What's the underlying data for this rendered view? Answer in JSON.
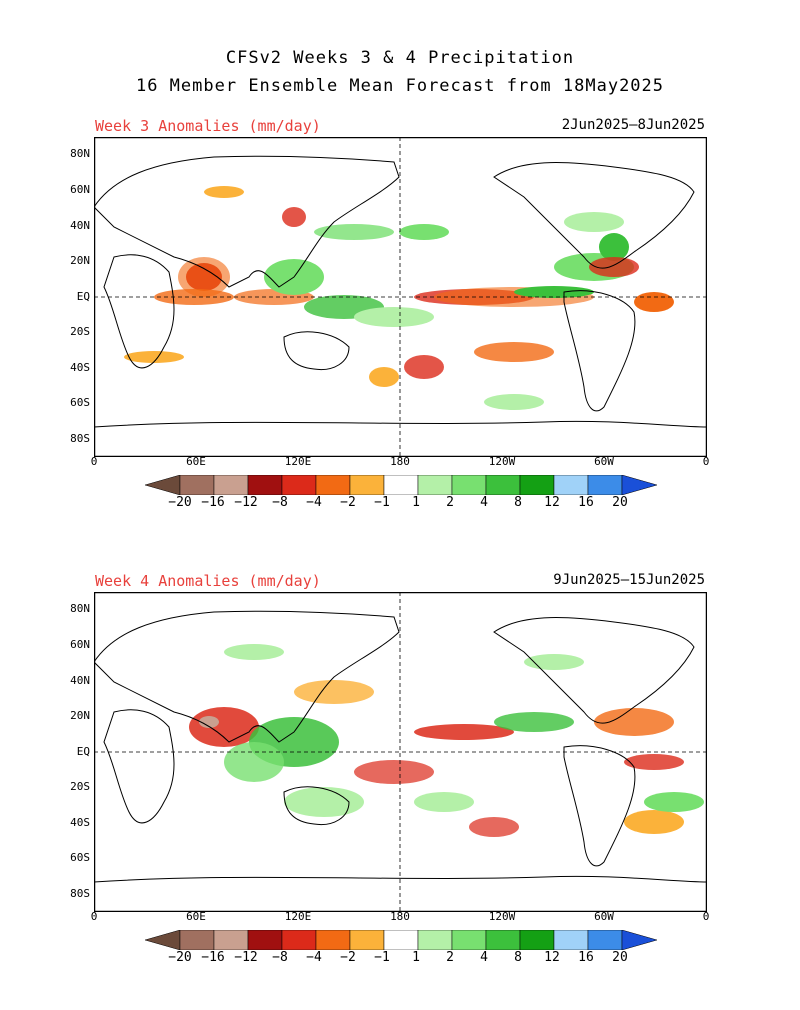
{
  "title_line1": "CFSv2 Weeks 3 & 4 Precipitation",
  "title_line2": "16 Member Ensemble Mean Forecast from 18May2025",
  "panels": [
    {
      "label": "Week 3 Anomalies (mm/day)",
      "dates": "2Jun2025–8Jun2025"
    },
    {
      "label": "Week 4 Anomalies (mm/day)",
      "dates": "9Jun2025–15Jun2025"
    }
  ],
  "lat_labels": [
    "80N",
    "60N",
    "40N",
    "20N",
    "EQ",
    "20S",
    "40S",
    "60S",
    "80S"
  ],
  "lon_labels": [
    "0",
    "60E",
    "120E",
    "180",
    "120W",
    "60W",
    "0"
  ],
  "colorbar": {
    "ticks": [
      "−20",
      "−16",
      "−12",
      "−8",
      "−4",
      "−2",
      "−1",
      "1",
      "2",
      "4",
      "8",
      "12",
      "16",
      "20"
    ],
    "colors": [
      "#6b4a3a",
      "#a07060",
      "#c9a090",
      "#a01010",
      "#dc2a1a",
      "#f26a14",
      "#fbb23a",
      "#ffffff",
      "#b4f0a8",
      "#78e070",
      "#3cc03c",
      "#14a014",
      "#a0d2f8",
      "#3c8ce8",
      "#1a50d8"
    ]
  },
  "colors": {
    "wet_light": "#b4f0a8",
    "wet_mid": "#78e070",
    "wet_strong": "#3cc03c",
    "dry_light": "#fbb23a",
    "dry_mid": "#f26a14",
    "dry_strong": "#dc2a1a",
    "title_red": "#e8413c"
  }
}
